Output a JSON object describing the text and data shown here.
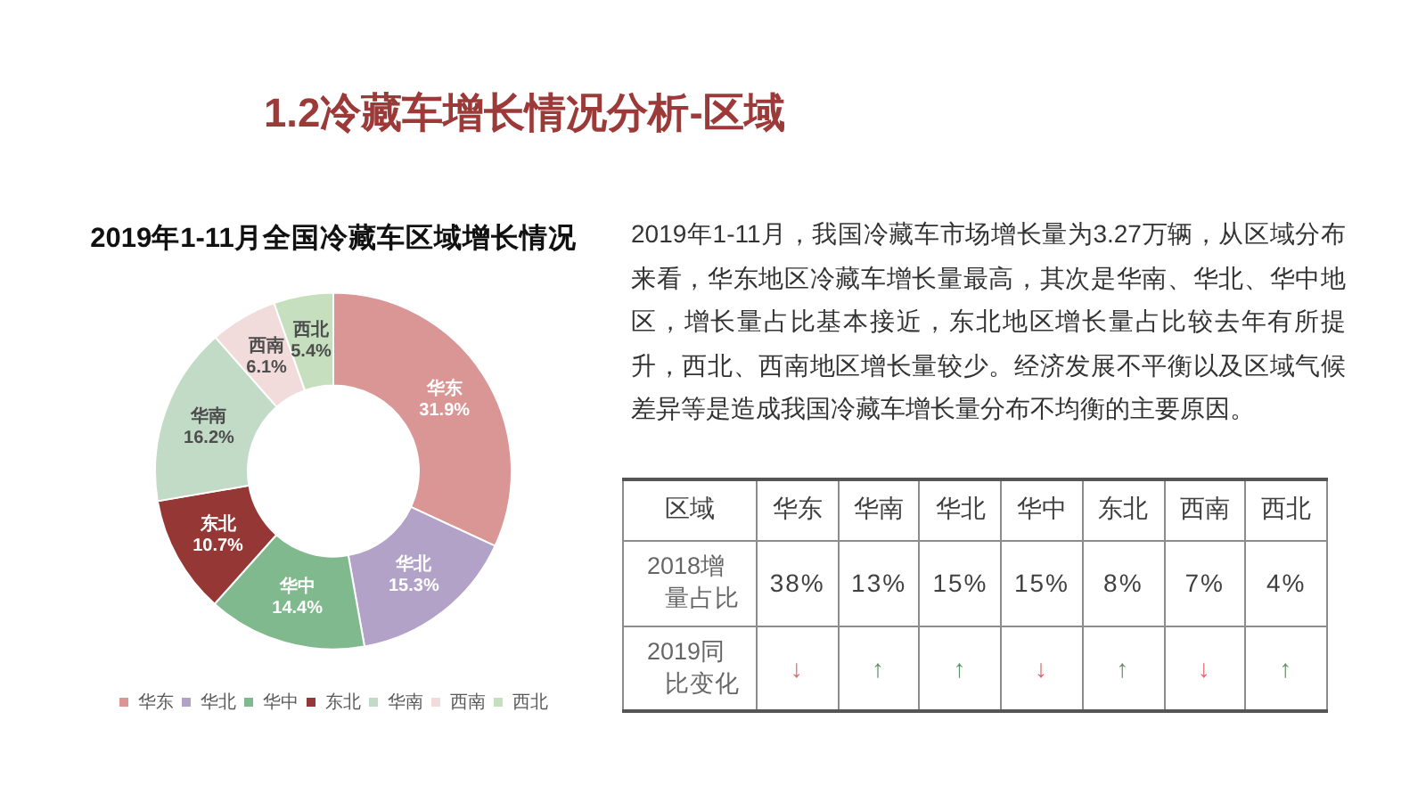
{
  "chart_data": [
    {
      "type": "other",
      "title": "1.2冷藏车增长情况分析-区域"
    },
    {
      "type": "donut",
      "title": "2019年1-11月全国冷藏车区域增长情况",
      "categories": [
        "华东",
        "华北",
        "华中",
        "东北",
        "华南",
        "西南",
        "西北"
      ],
      "values": [
        31.9,
        15.3,
        14.4,
        10.7,
        16.2,
        6.1,
        5.4
      ],
      "value_labels": [
        "31.9%",
        "15.3%",
        "14.4%",
        "10.7%",
        "16.2%",
        "6.1%",
        "5.4%"
      ],
      "colors": [
        "#d99694",
        "#b3a2c7",
        "#80b98d",
        "#953735",
        "#c2dbc6",
        "#f2dcdb",
        "#c6e0bf"
      ],
      "legend": "bottom"
    },
    {
      "type": "other",
      "annotations": [
        "2019年1-11月，我国冷藏车市场增长量为3.27万辆，从区域分布来看，华东地区冷藏车增长量最高，其次是华南、华北、华中地区，增长量占比基本接近，东北地区增长量占比较去年有所提升，西北、西南地区增长量较少。经济发展不平衡以及区域气候差异等是造成我国冷藏车增长量分布不均衡的主要原因。"
      ]
    },
    {
      "type": "other",
      "xlabel": "区域",
      "categories": [
        "华东",
        "华南",
        "华北",
        "华中",
        "东北",
        "西南",
        "西北"
      ],
      "y_categories": [
        "2018增量占比",
        "2019同比变化"
      ],
      "cell_labels": [
        [
          "38%",
          "13%",
          "15%",
          "15%",
          "8%",
          "7%",
          "4%"
        ],
        [
          "↓",
          "↑",
          "↑",
          "↓",
          "↑",
          "↓",
          "↑"
        ]
      ],
      "colors": [
        [
          "#404040",
          "#404040",
          "#404040",
          "#404040",
          "#404040",
          "#404040",
          "#404040"
        ],
        [
          "#e06b6b",
          "#5f8f66",
          "#5f8f66",
          "#e06b6b",
          "#5f8f66",
          "#e06b6b",
          "#5f8f66"
        ]
      ]
    }
  ]
}
